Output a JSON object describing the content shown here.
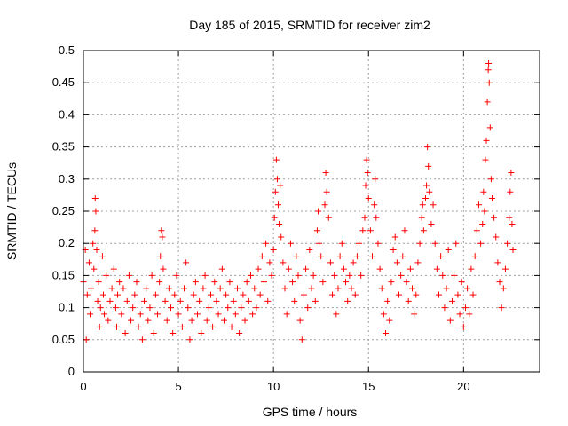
{
  "chart_data": {
    "type": "scatter",
    "title": "Day 185 of 2015, SRMTID for receiver zim2",
    "xlabel": "GPS time / hours",
    "ylabel": "SRMTID / TECUs",
    "xlim": [
      0,
      24
    ],
    "ylim": [
      0,
      0.5
    ],
    "xticks": [
      0,
      5,
      10,
      15,
      20
    ],
    "xtick_labels": [
      "0",
      "5",
      "10",
      "15",
      "20"
    ],
    "yticks": [
      0,
      0.05,
      0.1,
      0.15,
      0.2,
      0.25,
      0.3,
      0.35,
      0.4,
      0.45,
      0.5
    ],
    "ytick_labels": [
      "0",
      "0.05",
      "0.1",
      "0.15",
      "0.2",
      "0.25",
      "0.3",
      "0.35",
      "0.4",
      "0.45",
      "0.5"
    ],
    "grid": true,
    "marker": "+",
    "color": "#ff0000",
    "series": [
      {
        "name": "SRMTID",
        "points": [
          [
            0.0,
            0.14
          ],
          [
            0.1,
            0.19
          ],
          [
            0.15,
            0.05
          ],
          [
            0.2,
            0.12
          ],
          [
            0.3,
            0.17
          ],
          [
            0.35,
            0.09
          ],
          [
            0.4,
            0.13
          ],
          [
            0.5,
            0.2
          ],
          [
            0.55,
            0.16
          ],
          [
            0.6,
            0.22
          ],
          [
            0.62,
            0.27
          ],
          [
            0.65,
            0.25
          ],
          [
            0.7,
            0.19
          ],
          [
            0.75,
            0.11
          ],
          [
            0.8,
            0.14
          ],
          [
            0.85,
            0.07
          ],
          [
            0.9,
            0.1
          ],
          [
            1.0,
            0.18
          ],
          [
            1.05,
            0.12
          ],
          [
            1.1,
            0.09
          ],
          [
            1.2,
            0.15
          ],
          [
            1.3,
            0.08
          ],
          [
            1.4,
            0.11
          ],
          [
            1.5,
            0.13
          ],
          [
            1.6,
            0.16
          ],
          [
            1.7,
            0.1
          ],
          [
            1.75,
            0.07
          ],
          [
            1.8,
            0.12
          ],
          [
            1.9,
            0.14
          ],
          [
            2.0,
            0.09
          ],
          [
            2.1,
            0.13
          ],
          [
            2.2,
            0.06
          ],
          [
            2.3,
            0.11
          ],
          [
            2.4,
            0.15
          ],
          [
            2.5,
            0.08
          ],
          [
            2.6,
            0.1
          ],
          [
            2.7,
            0.12
          ],
          [
            2.8,
            0.14
          ],
          [
            2.9,
            0.07
          ],
          [
            3.0,
            0.09
          ],
          [
            3.1,
            0.05
          ],
          [
            3.2,
            0.11
          ],
          [
            3.3,
            0.13
          ],
          [
            3.4,
            0.08
          ],
          [
            3.5,
            0.1
          ],
          [
            3.6,
            0.15
          ],
          [
            3.7,
            0.06
          ],
          [
            3.8,
            0.12
          ],
          [
            3.9,
            0.09
          ],
          [
            4.0,
            0.14
          ],
          [
            4.05,
            0.18
          ],
          [
            4.1,
            0.22
          ],
          [
            4.15,
            0.21
          ],
          [
            4.2,
            0.16
          ],
          [
            4.3,
            0.11
          ],
          [
            4.4,
            0.08
          ],
          [
            4.5,
            0.13
          ],
          [
            4.6,
            0.1
          ],
          [
            4.7,
            0.06
          ],
          [
            4.8,
            0.12
          ],
          [
            4.9,
            0.15
          ],
          [
            5.0,
            0.09
          ],
          [
            5.1,
            0.11
          ],
          [
            5.2,
            0.07
          ],
          [
            5.3,
            0.13
          ],
          [
            5.4,
            0.17
          ],
          [
            5.5,
            0.1
          ],
          [
            5.6,
            0.05
          ],
          [
            5.7,
            0.08
          ],
          [
            5.8,
            0.12
          ],
          [
            5.9,
            0.14
          ],
          [
            6.0,
            0.09
          ],
          [
            6.1,
            0.11
          ],
          [
            6.2,
            0.06
          ],
          [
            6.3,
            0.13
          ],
          [
            6.4,
            0.15
          ],
          [
            6.5,
            0.08
          ],
          [
            6.6,
            0.1
          ],
          [
            6.7,
            0.12
          ],
          [
            6.8,
            0.07
          ],
          [
            6.9,
            0.14
          ],
          [
            7.0,
            0.11
          ],
          [
            7.1,
            0.09
          ],
          [
            7.2,
            0.13
          ],
          [
            7.3,
            0.16
          ],
          [
            7.4,
            0.08
          ],
          [
            7.5,
            0.12
          ],
          [
            7.6,
            0.1
          ],
          [
            7.7,
            0.14
          ],
          [
            7.8,
            0.07
          ],
          [
            7.9,
            0.11
          ],
          [
            8.0,
            0.09
          ],
          [
            8.1,
            0.13
          ],
          [
            8.2,
            0.06
          ],
          [
            8.3,
            0.1
          ],
          [
            8.4,
            0.12
          ],
          [
            8.5,
            0.08
          ],
          [
            8.6,
            0.14
          ],
          [
            8.7,
            0.11
          ],
          [
            8.8,
            0.15
          ],
          [
            8.9,
            0.09
          ],
          [
            9.0,
            0.13
          ],
          [
            9.1,
            0.1
          ],
          [
            9.2,
            0.16
          ],
          [
            9.3,
            0.12
          ],
          [
            9.4,
            0.18
          ],
          [
            9.5,
            0.14
          ],
          [
            9.6,
            0.2
          ],
          [
            9.7,
            0.11
          ],
          [
            9.8,
            0.17
          ],
          [
            9.9,
            0.15
          ],
          [
            10.0,
            0.19
          ],
          [
            10.05,
            0.24
          ],
          [
            10.1,
            0.28
          ],
          [
            10.15,
            0.33
          ],
          [
            10.2,
            0.3
          ],
          [
            10.25,
            0.26
          ],
          [
            10.3,
            0.23
          ],
          [
            10.35,
            0.29
          ],
          [
            10.4,
            0.21
          ],
          [
            10.5,
            0.17
          ],
          [
            10.6,
            0.13
          ],
          [
            10.7,
            0.09
          ],
          [
            10.8,
            0.16
          ],
          [
            10.9,
            0.2
          ],
          [
            11.0,
            0.14
          ],
          [
            11.1,
            0.11
          ],
          [
            11.2,
            0.18
          ],
          [
            11.3,
            0.15
          ],
          [
            11.4,
            0.08
          ],
          [
            11.5,
            0.05
          ],
          [
            11.6,
            0.12
          ],
          [
            11.7,
            0.16
          ],
          [
            11.8,
            0.1
          ],
          [
            11.9,
            0.19
          ],
          [
            12.0,
            0.13
          ],
          [
            12.1,
            0.15
          ],
          [
            12.2,
            0.11
          ],
          [
            12.3,
            0.22
          ],
          [
            12.35,
            0.25
          ],
          [
            12.4,
            0.2
          ],
          [
            12.5,
            0.18
          ],
          [
            12.6,
            0.14
          ],
          [
            12.7,
            0.26
          ],
          [
            12.75,
            0.31
          ],
          [
            12.8,
            0.28
          ],
          [
            12.9,
            0.24
          ],
          [
            13.0,
            0.17
          ],
          [
            13.1,
            0.12
          ],
          [
            13.2,
            0.15
          ],
          [
            13.3,
            0.09
          ],
          [
            13.4,
            0.13
          ],
          [
            13.5,
            0.18
          ],
          [
            13.6,
            0.2
          ],
          [
            13.7,
            0.16
          ],
          [
            13.8,
            0.14
          ],
          [
            13.9,
            0.11
          ],
          [
            14.0,
            0.15
          ],
          [
            14.1,
            0.13
          ],
          [
            14.2,
            0.17
          ],
          [
            14.3,
            0.12
          ],
          [
            14.4,
            0.18
          ],
          [
            14.5,
            0.2
          ],
          [
            14.6,
            0.15
          ],
          [
            14.7,
            0.22
          ],
          [
            14.8,
            0.24
          ],
          [
            14.85,
            0.29
          ],
          [
            14.9,
            0.33
          ],
          [
            14.95,
            0.31
          ],
          [
            15.0,
            0.27
          ],
          [
            15.1,
            0.22
          ],
          [
            15.2,
            0.18
          ],
          [
            15.3,
            0.26
          ],
          [
            15.35,
            0.3
          ],
          [
            15.4,
            0.24
          ],
          [
            15.5,
            0.2
          ],
          [
            15.6,
            0.16
          ],
          [
            15.7,
            0.13
          ],
          [
            15.8,
            0.09
          ],
          [
            15.9,
            0.06
          ],
          [
            16.0,
            0.11
          ],
          [
            16.1,
            0.08
          ],
          [
            16.2,
            0.14
          ],
          [
            16.3,
            0.19
          ],
          [
            16.4,
            0.21
          ],
          [
            16.5,
            0.17
          ],
          [
            16.6,
            0.12
          ],
          [
            16.7,
            0.15
          ],
          [
            16.8,
            0.18
          ],
          [
            16.9,
            0.22
          ],
          [
            17.0,
            0.14
          ],
          [
            17.1,
            0.11
          ],
          [
            17.2,
            0.16
          ],
          [
            17.3,
            0.13
          ],
          [
            17.4,
            0.09
          ],
          [
            17.5,
            0.12
          ],
          [
            17.6,
            0.17
          ],
          [
            17.7,
            0.2
          ],
          [
            17.8,
            0.24
          ],
          [
            17.85,
            0.26
          ],
          [
            17.9,
            0.22
          ],
          [
            18.0,
            0.27
          ],
          [
            18.05,
            0.29
          ],
          [
            18.1,
            0.35
          ],
          [
            18.15,
            0.32
          ],
          [
            18.2,
            0.28
          ],
          [
            18.3,
            0.23
          ],
          [
            18.4,
            0.26
          ],
          [
            18.5,
            0.2
          ],
          [
            18.6,
            0.16
          ],
          [
            18.7,
            0.12
          ],
          [
            18.8,
            0.18
          ],
          [
            18.9,
            0.15
          ],
          [
            19.0,
            0.1
          ],
          [
            19.1,
            0.13
          ],
          [
            19.2,
            0.19
          ],
          [
            19.3,
            0.08
          ],
          [
            19.4,
            0.11
          ],
          [
            19.5,
            0.15
          ],
          [
            19.6,
            0.2
          ],
          [
            19.7,
            0.12
          ],
          [
            19.8,
            0.09
          ],
          [
            19.9,
            0.14
          ],
          [
            20.0,
            0.07
          ],
          [
            20.1,
            0.1
          ],
          [
            20.2,
            0.13
          ],
          [
            20.3,
            0.09
          ],
          [
            20.4,
            0.16
          ],
          [
            20.5,
            0.12
          ],
          [
            20.6,
            0.18
          ],
          [
            20.7,
            0.22
          ],
          [
            20.8,
            0.26
          ],
          [
            20.9,
            0.2
          ],
          [
            21.0,
            0.23
          ],
          [
            21.05,
            0.28
          ],
          [
            21.1,
            0.25
          ],
          [
            21.15,
            0.33
          ],
          [
            21.2,
            0.36
          ],
          [
            21.25,
            0.42
          ],
          [
            21.3,
            0.47
          ],
          [
            21.32,
            0.48
          ],
          [
            21.35,
            0.45
          ],
          [
            21.4,
            0.38
          ],
          [
            21.45,
            0.3
          ],
          [
            21.5,
            0.27
          ],
          [
            21.6,
            0.24
          ],
          [
            21.7,
            0.21
          ],
          [
            21.8,
            0.17
          ],
          [
            21.9,
            0.14
          ],
          [
            22.0,
            0.1
          ],
          [
            22.1,
            0.13
          ],
          [
            22.2,
            0.16
          ],
          [
            22.3,
            0.2
          ],
          [
            22.4,
            0.24
          ],
          [
            22.45,
            0.28
          ],
          [
            22.5,
            0.31
          ],
          [
            22.55,
            0.23
          ],
          [
            22.6,
            0.19
          ]
        ]
      }
    ]
  }
}
